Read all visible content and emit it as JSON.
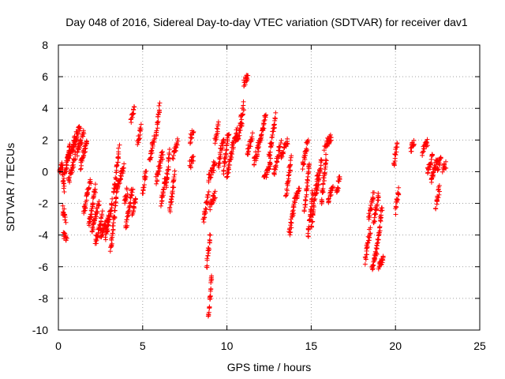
{
  "chart_data": {
    "type": "scatter",
    "title": "Day 048 of 2016, Sidereal Day-to-day VTEC variation (SDTVAR) for receiver dav1",
    "xlabel": "GPS time / hours",
    "ylabel": "SDTVAR / TECUs",
    "xlim": [
      0,
      25
    ],
    "ylim": [
      -10,
      8
    ],
    "xticks": [
      0,
      5,
      10,
      15,
      20,
      25
    ],
    "yticks": [
      -10,
      -8,
      -6,
      -4,
      -2,
      0,
      2,
      4,
      6,
      8
    ],
    "xtick_labels": [
      "0",
      "5",
      "10",
      "15",
      "20",
      "25"
    ],
    "ytick_labels": [
      "-10",
      "-8",
      "-6",
      "-4",
      "-2",
      "0",
      "2",
      "4",
      "6",
      "8"
    ],
    "grid": true,
    "marker": "+",
    "color": "#ff0000",
    "segments": [
      [
        0.05,
        0.2,
        0.0,
        0.5
      ],
      [
        0.2,
        0.35,
        0.5,
        -1.2
      ],
      [
        0.25,
        0.45,
        -2.4,
        -3.0
      ],
      [
        0.3,
        0.5,
        -3.9,
        -4.2
      ],
      [
        0.35,
        0.7,
        -0.3,
        1.8
      ],
      [
        0.5,
        1.1,
        0.8,
        2.0
      ],
      [
        0.6,
        1.0,
        -0.6,
        1.0
      ],
      [
        0.9,
        1.3,
        1.8,
        2.9
      ],
      [
        1.1,
        1.5,
        1.2,
        2.4
      ],
      [
        1.3,
        1.7,
        0.3,
        2.0
      ],
      [
        1.5,
        1.9,
        -2.6,
        -0.5
      ],
      [
        1.8,
        2.2,
        -3.5,
        -1.0
      ],
      [
        2.0,
        2.4,
        -3.8,
        -2.0
      ],
      [
        2.2,
        2.6,
        -4.5,
        -2.7
      ],
      [
        2.5,
        3.0,
        -4.0,
        -3.0
      ],
      [
        2.8,
        3.2,
        -4.2,
        -1.8
      ],
      [
        3.1,
        3.5,
        -5.0,
        -0.8
      ],
      [
        3.3,
        3.6,
        -1.5,
        1.6
      ],
      [
        3.5,
        3.9,
        -1.0,
        0.3
      ],
      [
        3.9,
        4.1,
        -2.0,
        -1.2
      ],
      [
        4.0,
        4.4,
        -3.5,
        -1.0
      ],
      [
        4.3,
        4.5,
        3.2,
        4.0
      ],
      [
        4.4,
        4.6,
        -2.8,
        -1.5
      ],
      [
        4.7,
        4.9,
        1.8,
        2.8
      ],
      [
        5.0,
        5.2,
        -1.2,
        0.0
      ],
      [
        5.4,
        5.7,
        0.8,
        2.2
      ],
      [
        5.8,
        6.0,
        2.2,
        4.3
      ],
      [
        5.8,
        6.2,
        -0.6,
        1.2
      ],
      [
        6.1,
        6.4,
        -2.0,
        -0.2
      ],
      [
        6.4,
        6.6,
        -1.0,
        1.2
      ],
      [
        6.6,
        6.9,
        -2.5,
        -0.2
      ],
      [
        6.8,
        7.1,
        1.0,
        2.0
      ],
      [
        7.8,
        8.0,
        2.0,
        2.5
      ],
      [
        7.8,
        8.0,
        0.4,
        0.8
      ],
      [
        8.6,
        8.9,
        -3.2,
        -1.4
      ],
      [
        8.8,
        9.0,
        -6.0,
        -4.0
      ],
      [
        8.9,
        9.1,
        -9.2,
        -6.5
      ],
      [
        8.9,
        9.3,
        -0.5,
        0.6
      ],
      [
        9.0,
        9.3,
        -2.2,
        -1.4
      ],
      [
        9.3,
        9.5,
        1.8,
        3.0
      ],
      [
        9.5,
        9.8,
        0.4,
        2.2
      ],
      [
        9.8,
        10.1,
        0.0,
        2.6
      ],
      [
        10.0,
        10.3,
        -0.4,
        1.2
      ],
      [
        10.3,
        10.6,
        1.4,
        2.6
      ],
      [
        10.6,
        10.9,
        2.0,
        3.0
      ],
      [
        10.8,
        11.0,
        3.0,
        4.2
      ],
      [
        11.0,
        11.25,
        5.5,
        6.2
      ],
      [
        11.2,
        11.5,
        1.2,
        2.2
      ],
      [
        11.6,
        11.9,
        0.5,
        1.8
      ],
      [
        11.9,
        12.3,
        1.5,
        3.6
      ],
      [
        12.2,
        12.6,
        -0.5,
        0.6
      ],
      [
        12.5,
        12.9,
        1.0,
        3.5
      ],
      [
        12.8,
        13.2,
        0.0,
        1.8
      ],
      [
        13.2,
        13.6,
        1.0,
        2.0
      ],
      [
        13.5,
        13.8,
        -1.5,
        0.8
      ],
      [
        13.7,
        14.0,
        -4.0,
        -2.0
      ],
      [
        14.0,
        14.3,
        -1.8,
        -1.0
      ],
      [
        14.5,
        14.8,
        0.3,
        2.0
      ],
      [
        14.6,
        14.9,
        -2.5,
        0.6
      ],
      [
        14.8,
        15.1,
        -4.0,
        -1.2
      ],
      [
        15.0,
        15.4,
        -3.5,
        0.0
      ],
      [
        15.3,
        15.6,
        -1.5,
        0.8
      ],
      [
        15.6,
        15.9,
        -2.0,
        1.0
      ],
      [
        15.8,
        16.2,
        1.6,
        2.2
      ],
      [
        16.0,
        16.3,
        -1.8,
        -1.0
      ],
      [
        16.5,
        16.7,
        -1.2,
        -0.4
      ],
      [
        18.2,
        18.5,
        -5.6,
        -3.6
      ],
      [
        18.4,
        18.7,
        -3.0,
        -1.4
      ],
      [
        18.6,
        18.9,
        -6.2,
        -4.8
      ],
      [
        18.7,
        19.0,
        -3.2,
        -1.6
      ],
      [
        18.9,
        19.2,
        -5.0,
        -2.2
      ],
      [
        19.0,
        19.3,
        -6.0,
        -5.4
      ],
      [
        19.9,
        20.1,
        0.3,
        1.8
      ],
      [
        20.0,
        20.2,
        -2.5,
        -1.2
      ],
      [
        20.9,
        21.1,
        1.4,
        1.9
      ],
      [
        21.6,
        21.9,
        1.2,
        1.9
      ],
      [
        21.9,
        22.2,
        0.0,
        1.0
      ],
      [
        22.1,
        22.5,
        -0.5,
        0.8
      ],
      [
        22.4,
        22.6,
        -2.2,
        -1.0
      ],
      [
        22.5,
        22.7,
        0.2,
        1.0
      ],
      [
        22.8,
        23.0,
        0.2,
        0.5
      ]
    ]
  }
}
